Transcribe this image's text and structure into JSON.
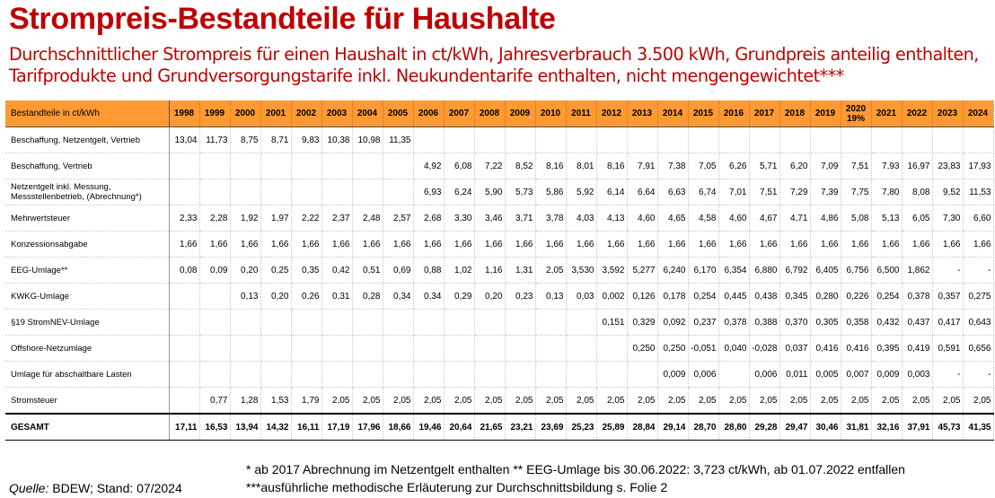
{
  "title": "Strompreis-Bestandteile für Haushalte",
  "subtitle": "Durchschnittlicher Strompreis für einen Haushalt in ct/kWh, Jahresverbrauch 3.500 kWh, Grundpreis anteilig enthalten, Tarifprodukte und Grundversorgungstarife inkl. Neukundentarife enthalten, nicht mengengewichtet***",
  "table": {
    "header_label": "Bestandteile in ct/kWh",
    "years": [
      "1998",
      "1999",
      "2000",
      "2001",
      "2002",
      "2003",
      "2004",
      "2005",
      "2006",
      "2007",
      "2008",
      "2009",
      "2010",
      "2011",
      "2012",
      "2013",
      "2014",
      "2015",
      "2016",
      "2017",
      "2018",
      "2019",
      "2020 19%",
      "2021",
      "2022",
      "2023",
      "2024"
    ],
    "rows": [
      {
        "label": "Beschaffung, Netzentgelt, Vertrieb",
        "values": [
          "13,04",
          "11,73",
          "8,75",
          "8,71",
          "9,83",
          "10,38",
          "10,98",
          "11,35",
          "",
          "",
          "",
          "",
          "",
          "",
          "",
          "",
          "",
          "",
          "",
          "",
          "",
          "",
          "",
          "",
          "",
          "",
          ""
        ]
      },
      {
        "label": "Beschaffung, Vertrieb",
        "values": [
          "",
          "",
          "",
          "",
          "",
          "",
          "",
          "",
          "4,92",
          "6,08",
          "7,22",
          "8,52",
          "8,16",
          "8,01",
          "8,16",
          "7,91",
          "7,38",
          "7,05",
          "6,26",
          "5,71",
          "6,20",
          "7,09",
          "7,51",
          "7,93",
          "16,97",
          "23,83",
          "17,93"
        ]
      },
      {
        "label": "Netzentgelt inkl. Messung, Messstellenbetrieb, (Abrechnung*)",
        "values": [
          "",
          "",
          "",
          "",
          "",
          "",
          "",
          "",
          "6,93",
          "6,24",
          "5,90",
          "5,73",
          "5,86",
          "5,92",
          "6,14",
          "6,64",
          "6,63",
          "6,74",
          "7,01",
          "7,51",
          "7,29",
          "7,39",
          "7,75",
          "7,80",
          "8,08",
          "9,52",
          "11,53"
        ]
      },
      {
        "label": "Mehrwertsteuer",
        "values": [
          "2,33",
          "2,28",
          "1,92",
          "1,97",
          "2,22",
          "2,37",
          "2,48",
          "2,57",
          "2,68",
          "3,30",
          "3,46",
          "3,71",
          "3,78",
          "4,03",
          "4,13",
          "4,60",
          "4,65",
          "4,58",
          "4,60",
          "4,67",
          "4,71",
          "4,86",
          "5,08",
          "5,13",
          "6,05",
          "7,30",
          "6,60"
        ]
      },
      {
        "label": "Konzessionsabgabe",
        "values": [
          "1,66",
          "1,66",
          "1,66",
          "1,66",
          "1,66",
          "1,66",
          "1,66",
          "1,66",
          "1,66",
          "1,66",
          "1,66",
          "1,66",
          "1,66",
          "1,66",
          "1,66",
          "1,66",
          "1,66",
          "1,66",
          "1,66",
          "1,66",
          "1,66",
          "1,66",
          "1,66",
          "1,66",
          "1,66",
          "1,66",
          "1,66"
        ]
      },
      {
        "label": "EEG-Umlage**",
        "values": [
          "0,08",
          "0,09",
          "0,20",
          "0,25",
          "0,35",
          "0,42",
          "0,51",
          "0,69",
          "0,88",
          "1,02",
          "1,16",
          "1,31",
          "2,05",
          "3,530",
          "3,592",
          "5,277",
          "6,240",
          "6,170",
          "6,354",
          "6,880",
          "6,792",
          "6,405",
          "6,756",
          "6,500",
          "1,862",
          "-",
          "-"
        ]
      },
      {
        "label": "KWKG-Umlage",
        "values": [
          "",
          "",
          "0,13",
          "0,20",
          "0,26",
          "0,31",
          "0,28",
          "0,34",
          "0,34",
          "0,29",
          "0,20",
          "0,23",
          "0,13",
          "0,03",
          "0,002",
          "0,126",
          "0,178",
          "0,254",
          "0,445",
          "0,438",
          "0,345",
          "0,280",
          "0,226",
          "0,254",
          "0,378",
          "0,357",
          "0,275"
        ]
      },
      {
        "label": "§19 StromNEV-Umlage",
        "values": [
          "",
          "",
          "",
          "",
          "",
          "",
          "",
          "",
          "",
          "",
          "",
          "",
          "",
          "",
          "0,151",
          "0,329",
          "0,092",
          "0,237",
          "0,378",
          "0,388",
          "0,370",
          "0,305",
          "0,358",
          "0,432",
          "0,437",
          "0,417",
          "0,643"
        ]
      },
      {
        "label": "Offshore-Netzumlage",
        "values": [
          "",
          "",
          "",
          "",
          "",
          "",
          "",
          "",
          "",
          "",
          "",
          "",
          "",
          "",
          "",
          "0,250",
          "0,250",
          "-0,051",
          "0,040",
          "-0,028",
          "0,037",
          "0,416",
          "0,416",
          "0,395",
          "0,419",
          "0,591",
          "0,656"
        ]
      },
      {
        "label": "Umlage für abschaltbare Lasten",
        "values": [
          "",
          "",
          "",
          "",
          "",
          "",
          "",
          "",
          "",
          "",
          "",
          "",
          "",
          "",
          "",
          "",
          "0,009",
          "0,006",
          "",
          "0,006",
          "0,011",
          "0,005",
          "0,007",
          "0,009",
          "0,003",
          "-",
          "-"
        ]
      },
      {
        "label": "Stromsteuer",
        "values": [
          "",
          "0,77",
          "1,28",
          "1,53",
          "1,79",
          "2,05",
          "2,05",
          "2,05",
          "2,05",
          "2,05",
          "2,05",
          "2,05",
          "2,05",
          "2,05",
          "2,05",
          "2,05",
          "2,05",
          "2,05",
          "2,05",
          "2,05",
          "2,05",
          "2,05",
          "2,05",
          "2,05",
          "2,05",
          "2,05",
          "2,05"
        ]
      }
    ],
    "total": {
      "label": "GESAMT",
      "values": [
        "17,11",
        "16,53",
        "13,94",
        "14,32",
        "16,11",
        "17,19",
        "17,96",
        "18,66",
        "19,46",
        "20,64",
        "21,65",
        "23,21",
        "23,69",
        "25,23",
        "25,89",
        "28,84",
        "29,14",
        "28,70",
        "28,80",
        "29,28",
        "29,47",
        "30,46",
        "31,81",
        "32,16",
        "37,91",
        "45,73",
        "41,35"
      ]
    }
  },
  "footnotes": {
    "line1": "* ab 2017 Abrechnung im Netzentgelt enthalten ** EEG-Umlage bis 30.06.2022: 3,723 ct/kWh, ab 01.07.2022 entfallen",
    "line2": "***ausführliche methodische Erläuterung zur Durchschnittsbildung s. Folie 2"
  },
  "source": {
    "label": "Quelle:",
    "text": " BDEW; Stand: 07/2024"
  },
  "colors": {
    "title": "#c00000",
    "header_bg": "#ff9933"
  }
}
